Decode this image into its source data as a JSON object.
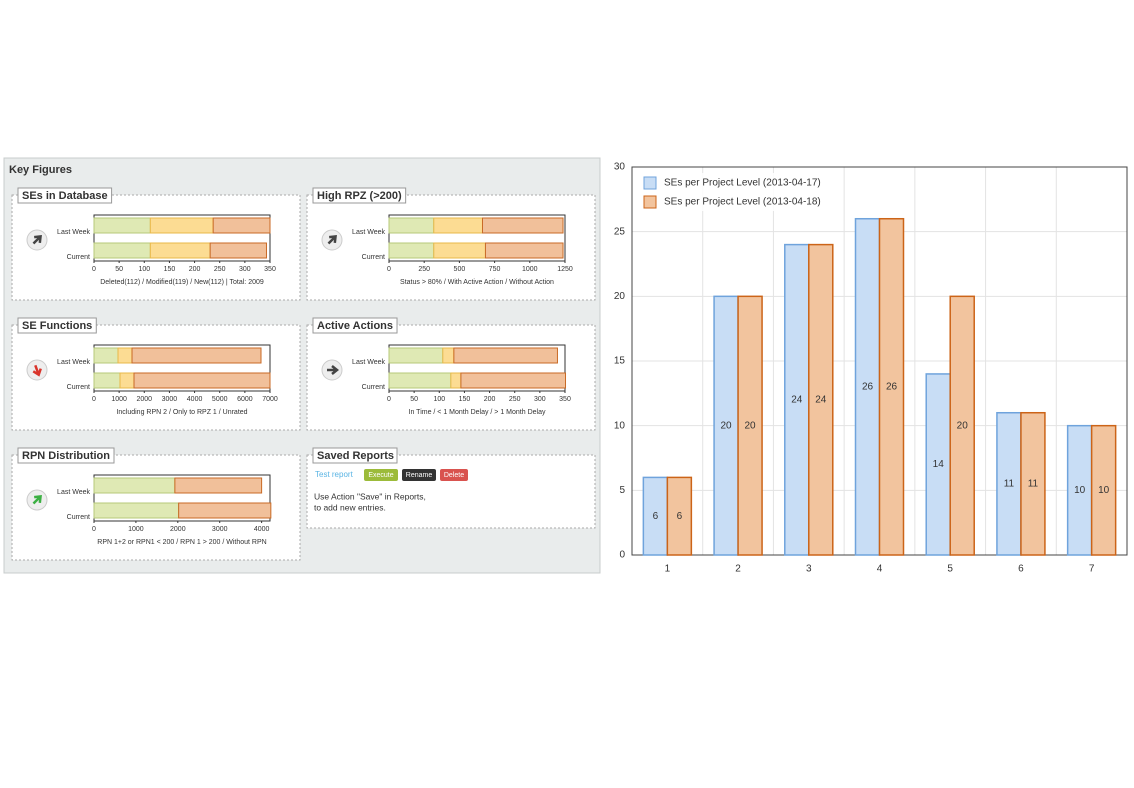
{
  "panel": {
    "title": "Key Figures",
    "saved_reports": {
      "title": "Saved Reports",
      "link": "Test report",
      "buttons": [
        "Execute",
        "Rename",
        "Delete"
      ],
      "text": [
        "Use Action \"Save\" in Reports,",
        "to add new entries."
      ]
    }
  },
  "chart_data": [
    {
      "type": "barh",
      "title": "SEs in Database",
      "categories": [
        "Last Week",
        "Current"
      ],
      "series": [
        {
          "color": "#dfe9b4",
          "edgecolor": "#b7c97a",
          "values": [
            112,
            112
          ]
        },
        {
          "color": "#fcdc93",
          "edgecolor": "#e8b94a",
          "values": [
            125,
            119
          ]
        },
        {
          "color": "#f1c09a",
          "edgecolor": "#c96a25",
          "values": [
            113,
            112
          ]
        }
      ],
      "xlim": [
        0,
        350
      ],
      "xticks": [
        0,
        50,
        100,
        150,
        200,
        250,
        300,
        350
      ],
      "note": "Deleted(112) / Modified(119) / New(112) | Total: 2009"
    },
    {
      "type": "barh",
      "title": "High RPZ (>200)",
      "categories": [
        "Last Week",
        "Current"
      ],
      "series": [
        {
          "color": "#dfe9b4",
          "edgecolor": "#b7c97a",
          "values": [
            318,
            318
          ]
        },
        {
          "color": "#fcdc93",
          "edgecolor": "#e8b94a",
          "values": [
            346,
            367
          ]
        },
        {
          "color": "#f1c09a",
          "edgecolor": "#c96a25",
          "values": [
            572,
            551
          ]
        }
      ],
      "xlim": [
        0,
        1250
      ],
      "xticks": [
        0,
        250,
        500,
        750,
        1000,
        1250
      ],
      "note": "Status > 80% / With Active Action / Without Action"
    },
    {
      "type": "barh",
      "title": "SE Functions",
      "categories": [
        "Last Week",
        "Current"
      ],
      "series": [
        {
          "color": "#dfe9b4",
          "edgecolor": "#b7c97a",
          "values": [
            955,
            1034
          ]
        },
        {
          "color": "#fcdc93",
          "edgecolor": "#e8b94a",
          "values": [
            557,
            557
          ]
        },
        {
          "color": "#f1c09a",
          "edgecolor": "#c96a25",
          "values": [
            5130,
            5409
          ]
        }
      ],
      "xlim": [
        0,
        7000
      ],
      "xticks": [
        0,
        1000,
        2000,
        3000,
        4000,
        5000,
        6000,
        7000
      ],
      "note": "Including RPN 2 / Only to RPZ 1 / Unrated"
    },
    {
      "type": "barh",
      "title": "Active Actions",
      "categories": [
        "Last Week",
        "Current"
      ],
      "series": [
        {
          "color": "#dfe9b4",
          "edgecolor": "#b7c97a",
          "values": [
            107,
            123
          ]
        },
        {
          "color": "#fcdc93",
          "edgecolor": "#e8b94a",
          "values": [
            22,
            20
          ]
        },
        {
          "color": "#f1c09a",
          "edgecolor": "#c96a25",
          "values": [
            206,
            208
          ]
        }
      ],
      "xlim": [
        0,
        350
      ],
      "xticks": [
        0,
        50,
        100,
        150,
        200,
        250,
        300,
        350
      ],
      "note": "In Time / < 1 Month Delay / > 1 Month Delay"
    },
    {
      "type": "barh",
      "title": "RPN Distribution",
      "categories": [
        "Last Week",
        "Current"
      ],
      "series": [
        {
          "color": "#dfe9b4",
          "edgecolor": "#b7c97a",
          "values": [
            1930,
            2020
          ]
        },
        {
          "color": "#f1c09a",
          "edgecolor": "#c96a25",
          "values": [
            2070,
            2200
          ]
        }
      ],
      "xlim": [
        0,
        4200
      ],
      "xticks": [
        0,
        1000,
        2000,
        3000,
        4000
      ],
      "note": "RPN 1+2 or RPN1 < 200 / RPN 1 > 200 / Without RPN"
    },
    {
      "type": "bar",
      "categories": [
        "1",
        "2",
        "3",
        "4",
        "5",
        "6",
        "7"
      ],
      "series": [
        {
          "name": "SEs per Project Level (2013-04-17)",
          "color": "#c8ddf5",
          "edgecolor": "#6fa3dc",
          "values": [
            6,
            20,
            24,
            26,
            14,
            11,
            10
          ]
        },
        {
          "name": "SEs per Project Level (2013-04-18)",
          "color": "#f2c49e",
          "edgecolor": "#cc6418",
          "values": [
            6,
            20,
            24,
            26,
            20,
            11,
            10
          ]
        }
      ],
      "ylim": [
        0,
        30
      ],
      "yticks": [
        0,
        5,
        10,
        15,
        20,
        25,
        30
      ],
      "grid": true,
      "legend": "upper left",
      "data_labels": true
    }
  ]
}
